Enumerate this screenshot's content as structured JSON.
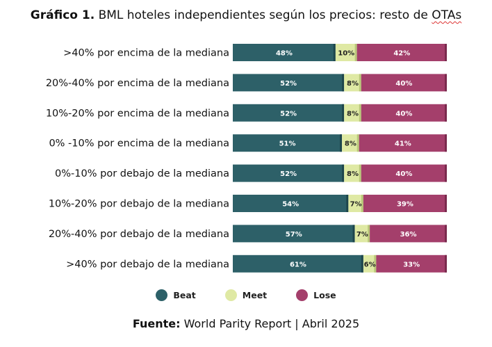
{
  "colors": {
    "beat": "#2d6068",
    "meet": "#dfe9a4",
    "lose": "#a43f6b"
  },
  "header": {
    "title_bold": "Gráfico 1.",
    "title_pre": "BML hoteles independientes según los precios: resto de ",
    "title_squiggle": "OTAs"
  },
  "legend": {
    "beat": "Beat",
    "meet": "Meet",
    "lose": "Lose"
  },
  "source": {
    "label": "Fuente:",
    "text": "World Parity Report | Abril 2025"
  },
  "chart_data": {
    "type": "bar",
    "orientation": "horizontal",
    "stacked": true,
    "unit": "%",
    "categories": [
      ">40% por encima de la mediana",
      "20%-40% por encima de la mediana",
      "10%-20% por encima de la mediana",
      "0% -10% por encima de la mediana",
      "0%-10% por debajo de la mediana",
      "10%-20% por debajo de la mediana",
      "20%-40% por debajo de la mediana",
      ">40% por debajo de la mediana"
    ],
    "series": [
      {
        "name": "Beat",
        "values": [
          48,
          52,
          52,
          51,
          52,
          54,
          57,
          61
        ]
      },
      {
        "name": "Meet",
        "values": [
          10,
          8,
          8,
          8,
          8,
          7,
          7,
          6
        ]
      },
      {
        "name": "Lose",
        "values": [
          42,
          40,
          40,
          41,
          40,
          39,
          36,
          33
        ]
      }
    ],
    "legend_position": "bottom",
    "grid": false
  }
}
